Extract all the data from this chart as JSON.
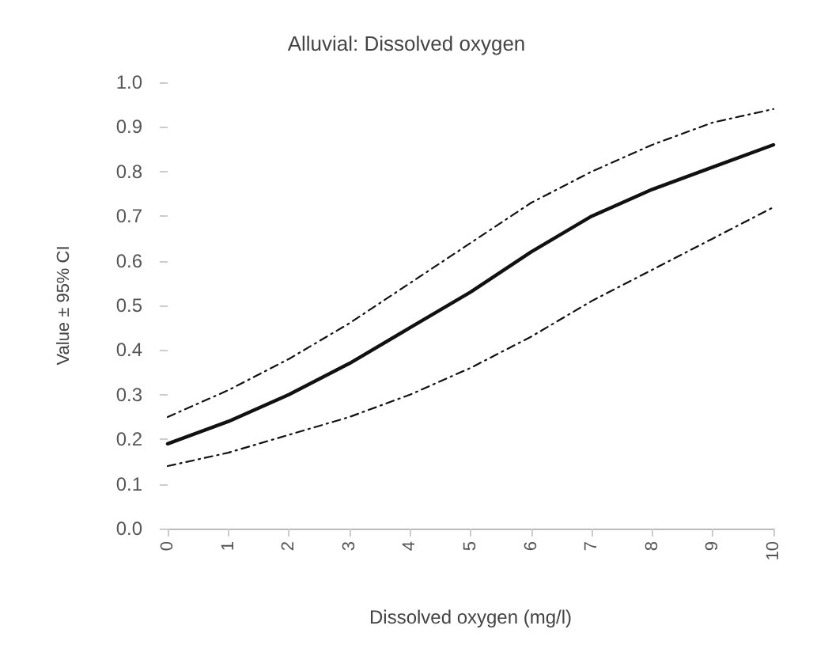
{
  "chart_data": {
    "type": "line",
    "title": "Alluvial: Dissolved oxygen",
    "xlabel": "Dissolved oxygen (mg/l)",
    "ylabel": "Value ± 95% CI",
    "x": [
      0,
      1,
      2,
      3,
      4,
      5,
      6,
      7,
      8,
      9,
      10
    ],
    "series": [
      {
        "color": "#111111",
        "values": [
          0.19,
          0.24,
          0.3,
          0.37,
          0.45,
          0.53,
          0.62,
          0.7,
          0.76,
          0.81,
          0.86
        ]
      },
      {
        "color": "#111111",
        "line_style": "dashed",
        "values": [
          0.14,
          0.17,
          0.21,
          0.25,
          0.3,
          0.36,
          0.43,
          0.51,
          0.58,
          0.65,
          0.72
        ]
      },
      {
        "color": "#111111",
        "line_style": "dashed",
        "values": [
          0.25,
          0.31,
          0.38,
          0.46,
          0.55,
          0.64,
          0.73,
          0.8,
          0.86,
          0.91,
          0.94
        ]
      }
    ],
    "xlim": [
      0,
      10
    ],
    "xticks": [
      0,
      1,
      2,
      3,
      4,
      5,
      6,
      7,
      8,
      9,
      10
    ],
    "ylim": [
      0,
      1
    ],
    "yticks": [
      {
        "value": 0,
        "label": "0.0"
      },
      0.1,
      0.2,
      0.3,
      0.4,
      0.5,
      0.6,
      0.7,
      0.8,
      0.9,
      {
        "value": 1,
        "label": "1.0"
      }
    ],
    "grid": false,
    "marker": "none",
    "line_style": "solid"
  }
}
